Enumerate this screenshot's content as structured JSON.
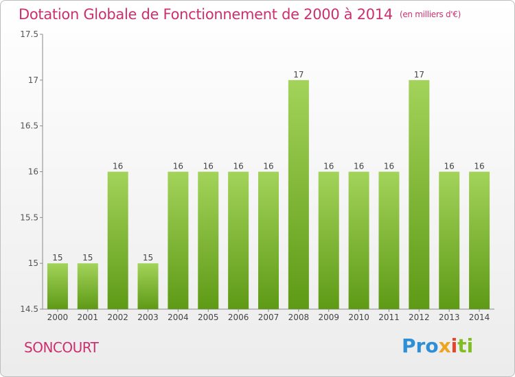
{
  "title": "Dotation Globale de Fonctionnement de 2000 à 2014",
  "subtitle": "(en milliers d'€)",
  "commune": "SONCOURT",
  "logo": {
    "part1": "Pro",
    "part2": "x",
    "part3": "i",
    "part4": "ti"
  },
  "colors": {
    "accent": "#cc2f6e",
    "bar_top": "#a3d35a",
    "bar_bottom": "#5e9a16"
  },
  "chart_data": {
    "type": "bar",
    "categories": [
      "2000",
      "2001",
      "2002",
      "2003",
      "2004",
      "2005",
      "2006",
      "2007",
      "2008",
      "2009",
      "2010",
      "2011",
      "2012",
      "2013",
      "2014"
    ],
    "values": [
      15,
      15,
      16,
      15,
      16,
      16,
      16,
      16,
      17,
      16,
      16,
      16,
      17,
      16,
      16
    ],
    "data_labels": [
      "15",
      "15",
      "16",
      "15",
      "16",
      "16",
      "16",
      "16",
      "17",
      "16",
      "16",
      "16",
      "17",
      "16",
      "16"
    ],
    "y_ticks": [
      14.5,
      15,
      15.5,
      16,
      16.5,
      17,
      17.5
    ],
    "y_tick_labels": [
      "14.5",
      "15",
      "15.5",
      "16",
      "16.5",
      "17",
      "17.5"
    ],
    "ylim": [
      14.5,
      17.5
    ],
    "title": "Dotation Globale de Fonctionnement de 2000 à 2014",
    "xlabel": "",
    "ylabel": "",
    "grid": false
  }
}
